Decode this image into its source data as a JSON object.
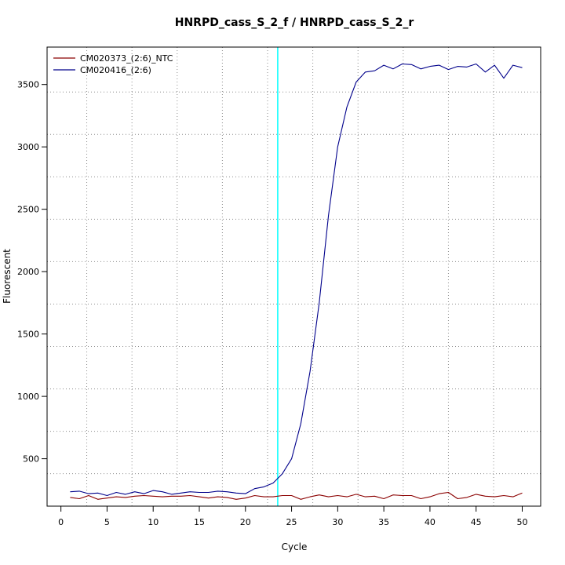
{
  "chart_data": {
    "type": "line",
    "title": "HNRPD_cass_S_2_f / HNRPD_cass_S_2_r",
    "xlabel": "Cycle",
    "ylabel": "Fluorescent",
    "xlim": [
      -1.5,
      52
    ],
    "ylim": [
      120,
      3800
    ],
    "x_ticks": [
      0,
      5,
      10,
      15,
      20,
      25,
      30,
      35,
      40,
      45,
      50
    ],
    "y_ticks": [
      500,
      1000,
      1500,
      2000,
      2500,
      3000,
      3500
    ],
    "x_grid": [
      2.8,
      7.7,
      12.6,
      17.5,
      22.4,
      27.3,
      32.2,
      37.1,
      42.0,
      46.9
    ],
    "y_grid": [
      380,
      720,
      1060,
      1400,
      1740,
      2080,
      2420,
      2760,
      3100,
      3440
    ],
    "grid": true,
    "threshold_cycle": 23.5,
    "threshold_color": "#00ffff",
    "legend_position": "top-left",
    "x": [
      1,
      2,
      3,
      4,
      5,
      6,
      7,
      8,
      9,
      10,
      11,
      12,
      13,
      14,
      15,
      16,
      17,
      18,
      19,
      20,
      21,
      22,
      23,
      24,
      25,
      26,
      27,
      28,
      29,
      30,
      31,
      32,
      33,
      34,
      35,
      36,
      37,
      38,
      39,
      40,
      41,
      42,
      43,
      44,
      45,
      46,
      47,
      48,
      49,
      50
    ],
    "series": [
      {
        "name": "CM020373_(2:6)_NTC",
        "color": "#8b0000",
        "values": [
          190,
          180,
          205,
          175,
          185,
          195,
          190,
          200,
          205,
          200,
          195,
          200,
          200,
          205,
          195,
          185,
          195,
          190,
          175,
          185,
          205,
          195,
          195,
          205,
          205,
          175,
          195,
          210,
          195,
          205,
          195,
          215,
          195,
          200,
          180,
          210,
          205,
          205,
          180,
          195,
          220,
          230,
          180,
          190,
          215,
          200,
          195,
          205,
          195,
          225
        ]
      },
      {
        "name": "CM020416_(2:6)",
        "color": "#00008b",
        "values": [
          235,
          240,
          220,
          225,
          205,
          230,
          215,
          235,
          220,
          245,
          235,
          215,
          225,
          235,
          230,
          230,
          240,
          235,
          225,
          220,
          260,
          275,
          305,
          380,
          500,
          780,
          1200,
          1750,
          2450,
          3000,
          3320,
          3520,
          3600,
          3610,
          3655,
          3625,
          3665,
          3660,
          3625,
          3645,
          3655,
          3620,
          3645,
          3640,
          3665,
          3600,
          3655,
          3550,
          3655,
          3635
        ]
      }
    ]
  }
}
